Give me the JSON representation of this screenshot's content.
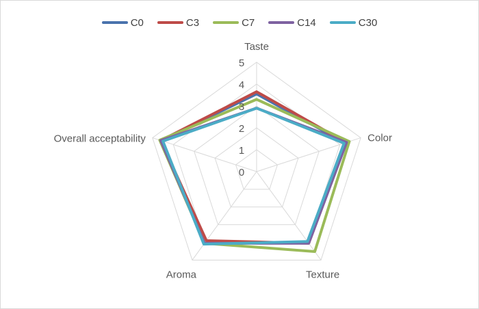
{
  "chart_data": {
    "type": "radar",
    "axes": [
      "Taste",
      "Color",
      "Texture",
      "Aroma",
      "Overall acceptability"
    ],
    "r_ticks": [
      0,
      1,
      2,
      3,
      4,
      5
    ],
    "r_range": [
      0,
      5
    ],
    "grid": true,
    "legend_position": "top",
    "series": [
      {
        "name": "C0",
        "color": "#4a73ad",
        "values": [
          3.55,
          4.25,
          4.02,
          4.05,
          4.6
        ]
      },
      {
        "name": "C3",
        "color": "#be4b48",
        "values": [
          3.65,
          4.3,
          4.05,
          3.9,
          4.6
        ]
      },
      {
        "name": "C7",
        "color": "#9bbb59",
        "values": [
          3.3,
          4.45,
          4.52,
          4.05,
          4.65
        ]
      },
      {
        "name": "C14",
        "color": "#7e62a1",
        "values": [
          2.9,
          4.32,
          4.05,
          4.05,
          4.6
        ]
      },
      {
        "name": "C30",
        "color": "#4bacc6",
        "values": [
          2.9,
          4.2,
          3.95,
          4.1,
          4.5
        ]
      }
    ]
  }
}
